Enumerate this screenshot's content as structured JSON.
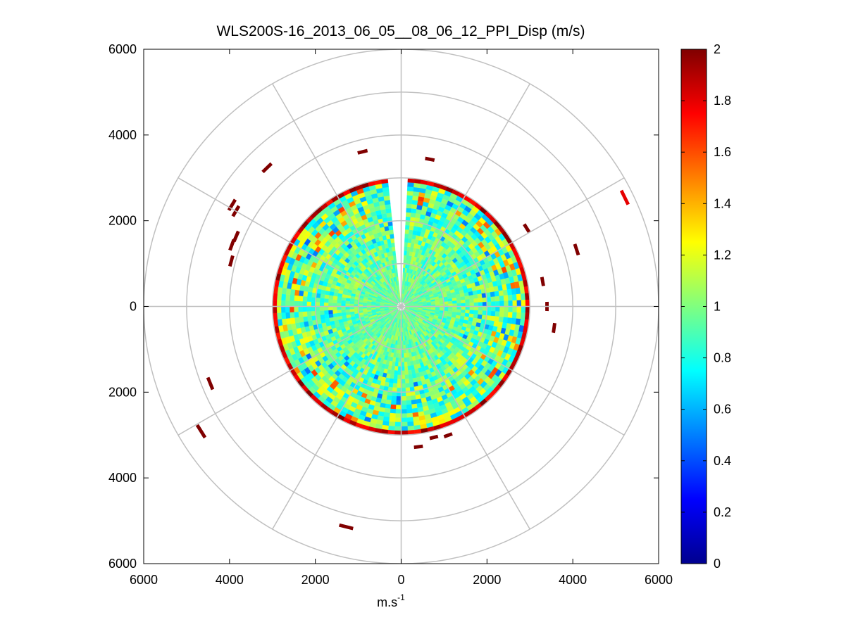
{
  "chart_data": {
    "type": "heatmap",
    "subtype": "polar PPI scan",
    "title": "WLS200S-16_2013_06_05__08_06_12_PPI_Disp (m/s)",
    "xlabel": "m.s",
    "xlabel_superscript": "-1",
    "ylabel": "",
    "xlim": [
      -6000,
      6000
    ],
    "ylim": [
      -6000,
      6000
    ],
    "x_tick_values": [
      -6000,
      -4000,
      -2000,
      0,
      2000,
      4000,
      6000
    ],
    "x_tick_labels": [
      "6000",
      "4000",
      "2000",
      "0",
      "2000",
      "4000",
      "6000"
    ],
    "y_tick_values": [
      6000,
      4000,
      2000,
      0,
      -2000,
      -4000,
      -6000
    ],
    "y_tick_labels": [
      "6000",
      "4000",
      "2000",
      "0",
      "2000",
      "4000",
      "6000"
    ],
    "polar_grid": {
      "rings": [
        1000,
        2000,
        3000,
        4000,
        5000,
        6000
      ],
      "spoke_angles_deg": [
        0,
        30,
        60,
        90,
        120,
        150,
        180,
        210,
        240,
        270,
        300,
        330
      ],
      "grid": true
    },
    "colorbar": {
      "colormap": "jet",
      "range": [
        0,
        2
      ],
      "ticks": [
        0,
        0.2,
        0.4,
        0.6,
        0.8,
        1,
        1.2,
        1.4,
        1.6,
        1.8,
        2
      ],
      "tick_labels": [
        "0",
        "0.2",
        "0.4",
        "0.6",
        "0.8",
        "1",
        "1.2",
        "1.4",
        "1.6",
        "1.8",
        "2"
      ]
    },
    "scan": {
      "max_range": 3000,
      "gate_spacing": 100,
      "beam_width_deg": 3,
      "missing_sector_deg": [
        354,
        360
      ],
      "typical_value": 0.95,
      "rim_value_range": [
        1.7,
        2.0
      ],
      "colors": {
        "grid": "#c0c0c0",
        "axes": "#000000",
        "background": "#ffffff"
      }
    },
    "outliers": [
      {
        "azimuth_deg": 346,
        "range_m": 3720,
        "value": 2.0
      },
      {
        "azimuth_deg": 11,
        "range_m": 3500,
        "value": 2.0
      },
      {
        "azimuth_deg": 316,
        "range_m": 4500,
        "value": 2.0
      },
      {
        "azimuth_deg": 301,
        "range_m": 4600,
        "value": 2.0
      },
      {
        "azimuth_deg": 300,
        "range_m": 4450,
        "value": 2.0
      },
      {
        "azimuth_deg": 293,
        "range_m": 4180,
        "value": 2.0
      },
      {
        "azimuth_deg": 290,
        "range_m": 4200,
        "value": 2.0
      },
      {
        "azimuth_deg": 285,
        "range_m": 4100,
        "value": 2.0
      },
      {
        "azimuth_deg": 64,
        "range_m": 5800,
        "value": 1.8
      },
      {
        "azimuth_deg": 72,
        "range_m": 4300,
        "value": 2.0
      },
      {
        "azimuth_deg": 98,
        "range_m": 3600,
        "value": 2.0
      },
      {
        "azimuth_deg": 248,
        "range_m": 4800,
        "value": 2.0
      },
      {
        "azimuth_deg": 238,
        "range_m": 5500,
        "value": 2.0
      },
      {
        "azimuth_deg": 194,
        "range_m": 5300,
        "value": 2.0
      },
      {
        "azimuth_deg": 173,
        "range_m": 3300,
        "value": 2.0
      },
      {
        "azimuth_deg": 160,
        "range_m": 3200,
        "value": 2.0
      },
      {
        "azimuth_deg": 166,
        "range_m": 3150,
        "value": 2.0
      },
      {
        "azimuth_deg": 58,
        "range_m": 3450,
        "value": 2.0
      },
      {
        "azimuth_deg": 80,
        "range_m": 3350,
        "value": 2.0
      },
      {
        "azimuth_deg": 90,
        "range_m": 3400,
        "value": 2.0
      }
    ]
  }
}
